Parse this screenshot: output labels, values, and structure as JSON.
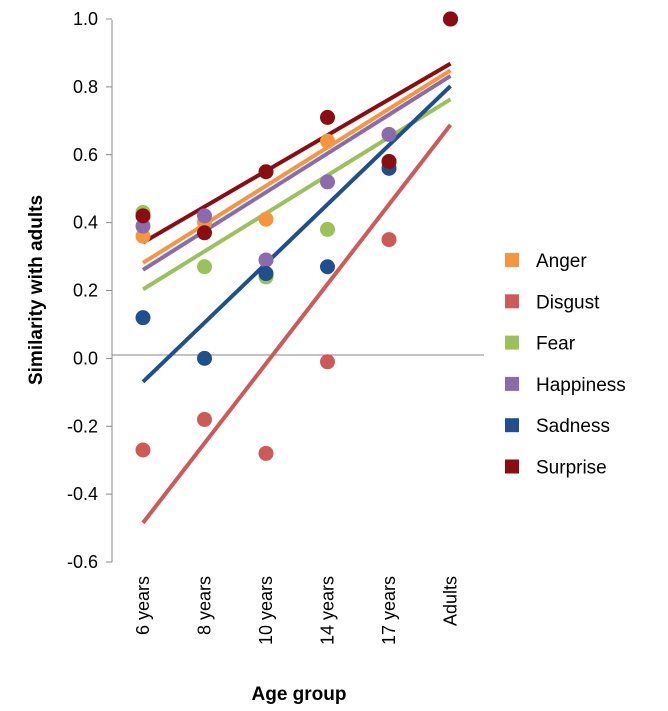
{
  "chart_data": {
    "type": "scatter",
    "title": "",
    "xlabel": "Age group",
    "ylabel": "Similarity with adults",
    "categories": [
      "6 years",
      "8 years",
      "10 years",
      "14 years",
      "17 years",
      "Adults"
    ],
    "ylim": [
      -0.6,
      1.0
    ],
    "yticks": [
      "1.0",
      "0.8",
      "0.6",
      "0.4",
      "0.2",
      "0.0",
      "-0.2",
      "-0.4",
      "-0.6"
    ],
    "trendlines": true,
    "grid": false,
    "legend_position": "right",
    "series": [
      {
        "name": "Anger",
        "color": "#f7953f",
        "values": [
          0.36,
          0.4,
          0.41,
          0.64,
          0.58,
          1.0
        ]
      },
      {
        "name": "Disgust",
        "color": "#cd5a57",
        "values": [
          -0.27,
          -0.18,
          -0.28,
          -0.01,
          0.35,
          1.0
        ]
      },
      {
        "name": "Fear",
        "color": "#9bc15b",
        "values": [
          0.43,
          0.27,
          0.24,
          0.38,
          0.58,
          1.0
        ]
      },
      {
        "name": "Happiness",
        "color": "#8b6aad",
        "values": [
          0.39,
          0.42,
          0.29,
          0.52,
          0.66,
          1.0
        ]
      },
      {
        "name": "Sadness",
        "color": "#1f4f8c",
        "values": [
          0.12,
          0.0,
          0.25,
          0.27,
          0.56,
          1.0
        ]
      },
      {
        "name": "Surprise",
        "color": "#8b0d12",
        "values": [
          0.42,
          0.37,
          0.55,
          0.71,
          0.58,
          1.0
        ]
      }
    ]
  }
}
